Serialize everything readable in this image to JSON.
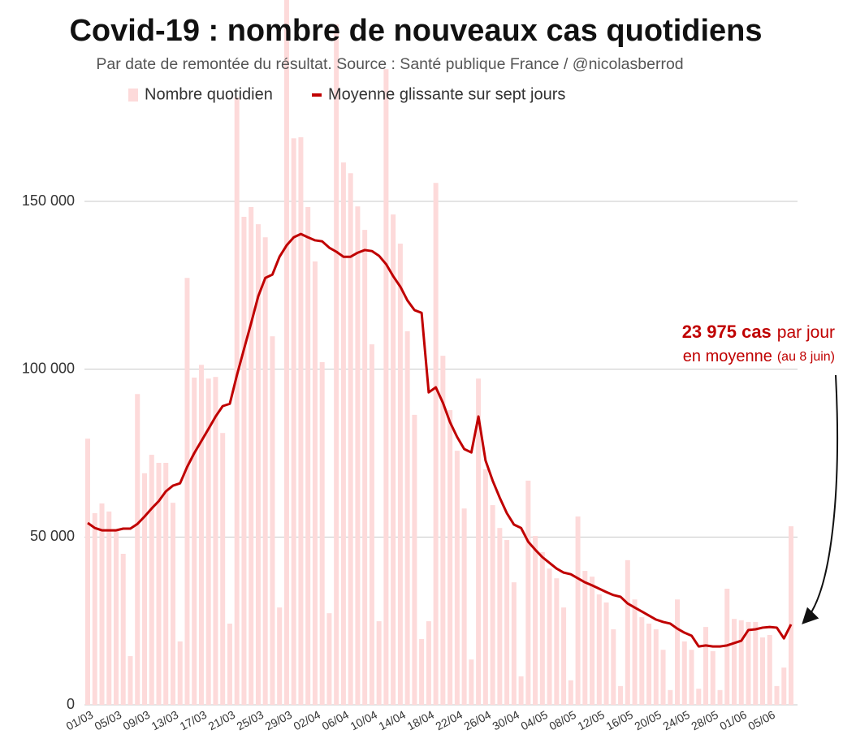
{
  "chart_data": {
    "type": "bar",
    "title": "Covid-19 : nombre de nouveaux cas quotidiens",
    "subtitle": "Par date de remontée du résultat. Source : Santé publique France / @nicolasberrod",
    "categories": [
      "01/03",
      null,
      null,
      null,
      "05/03",
      null,
      null,
      null,
      "09/03",
      null,
      null,
      null,
      "13/03",
      null,
      null,
      null,
      "17/03",
      null,
      null,
      null,
      "21/03",
      null,
      null,
      null,
      "25/03",
      null,
      null,
      null,
      "29/03",
      null,
      null,
      null,
      "02/04",
      null,
      null,
      null,
      "06/04",
      null,
      null,
      null,
      "10/04",
      null,
      null,
      null,
      "14/04",
      null,
      null,
      null,
      "18/04",
      null,
      null,
      null,
      "22/04",
      null,
      null,
      null,
      "26/04",
      null,
      null,
      null,
      "30/04",
      null,
      null,
      null,
      "04/05",
      null,
      null,
      null,
      "08/05",
      null,
      null,
      null,
      "12/05",
      null,
      null,
      null,
      "16/05",
      null,
      null,
      null,
      "20/05",
      null,
      null,
      null,
      "24/05",
      null,
      null,
      null,
      "28/05",
      null,
      null,
      null,
      "01/06",
      null,
      null,
      null,
      "05/06",
      null,
      null,
      null
    ],
    "series": [
      {
        "name": "Nombre quotidien",
        "type": "bar",
        "color": "#fddada",
        "values": [
          79300,
          57100,
          60000,
          57600,
          52000,
          45000,
          14500,
          92600,
          69000,
          74500,
          72100,
          72100,
          60200,
          18900,
          127200,
          97500,
          101300,
          97200,
          97700,
          81000,
          24200,
          181000,
          145400,
          148300,
          143200,
          139300,
          109800,
          29000,
          215000,
          168800,
          169100,
          148300,
          132100,
          102100,
          27300,
          202700,
          161600,
          158400,
          148500,
          141500,
          107400,
          24900,
          189400,
          146100,
          137400,
          111300,
          86400,
          19600,
          24900,
          155500,
          104000,
          87800,
          75700,
          58500,
          13500,
          97200,
          70200,
          59500,
          52700,
          49100,
          36500,
          8500,
          66800,
          50300,
          45500,
          40600,
          37700,
          29000,
          7300,
          56100,
          39900,
          38200,
          32900,
          30500,
          22500,
          5600,
          43100,
          31400,
          26100,
          24200,
          22500,
          16400,
          4400,
          31400,
          18900,
          16400,
          4800,
          23200,
          16000,
          4400,
          34600,
          25600,
          25200,
          24700,
          24700,
          20100,
          20800,
          5600,
          11100,
          53200
        ]
      },
      {
        "name": "Moyenne glissante sur sept jours",
        "type": "line",
        "color": "#c00000",
        "values": [
          54200,
          52700,
          52000,
          52000,
          52000,
          52500,
          52500,
          53900,
          56100,
          58500,
          60700,
          63600,
          65300,
          66000,
          70900,
          75000,
          78600,
          82200,
          85900,
          89000,
          89700,
          98200,
          106000,
          113700,
          121700,
          127200,
          128200,
          133500,
          136900,
          139300,
          140300,
          139300,
          138400,
          138100,
          136200,
          135000,
          133500,
          133500,
          134700,
          135500,
          135200,
          133800,
          131300,
          127700,
          124600,
          120500,
          117600,
          116800,
          93100,
          94600,
          90000,
          84200,
          79800,
          76200,
          75200,
          85900,
          72800,
          66800,
          61700,
          57100,
          53700,
          52700,
          48600,
          46200,
          44000,
          42300,
          40600,
          39400,
          38900,
          37700,
          36500,
          35600,
          34600,
          33600,
          32700,
          32200,
          30200,
          29000,
          27800,
          26600,
          25400,
          24700,
          24200,
          22700,
          21500,
          20600,
          17400,
          17700,
          17400,
          17400,
          17700,
          18400,
          19100,
          22300,
          22500,
          23000,
          23200,
          23000,
          19800,
          23975
        ]
      }
    ],
    "annotation": [
      "23 975 cas",
      "par jour",
      "en moyenne",
      "(au 8 juin)"
    ],
    "ylim": [
      0,
      210000
    ],
    "yticks": [
      {
        "value": 0,
        "label": "0"
      },
      {
        "value": 50000,
        "label": "50 000"
      },
      {
        "value": 100000,
        "label": "100 000"
      },
      {
        "value": 150000,
        "label": "150 000"
      }
    ],
    "grid": true
  }
}
